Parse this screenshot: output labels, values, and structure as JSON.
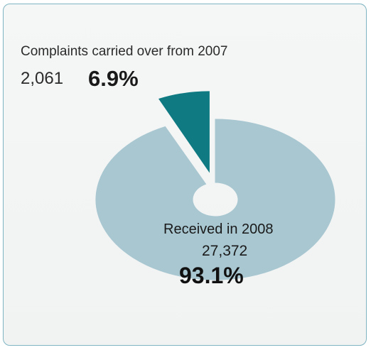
{
  "colors": {
    "received": "#a8c7d1",
    "carried": "#0f7a82",
    "hole": "#ffffff",
    "border": "#7fb5c2"
  },
  "chart_data": {
    "type": "pie",
    "title": "",
    "slices": [
      {
        "name": "Complaints carried over from 2007",
        "count": "2,061",
        "percent": "6.9%",
        "value": 6.9,
        "exploded": true
      },
      {
        "name": "Received in 2008",
        "count": "27,372",
        "percent": "93.1%",
        "value": 93.1,
        "exploded": false
      }
    ],
    "style": "donut-3d"
  }
}
